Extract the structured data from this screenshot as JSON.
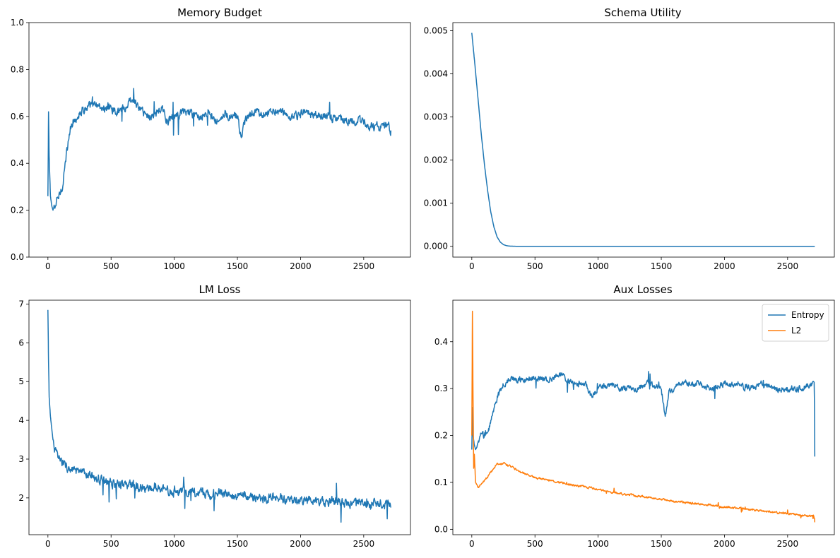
{
  "chart_data": [
    {
      "type": "line",
      "title": "Memory Budget",
      "xlabel": "",
      "ylabel": "",
      "xlim": [
        -150,
        2870
      ],
      "ylim": [
        0,
        1
      ],
      "xticks": [
        0,
        500,
        1000,
        1500,
        2000,
        2500
      ],
      "xtick_labels": [
        "0",
        "500",
        "1000",
        "1500",
        "2000",
        "2500"
      ],
      "yticks": [
        0,
        0.2,
        0.4,
        0.6,
        0.8,
        1.0
      ],
      "ytick_labels": [
        "0.0",
        "0.2",
        "0.4",
        "0.6",
        "0.8",
        "1.0"
      ],
      "grid": false,
      "series": [
        {
          "color": "#1f77b4",
          "noise": 0.035,
          "x": [
            0,
            5,
            10,
            20,
            30,
            40,
            60,
            80,
            100,
            120,
            150,
            180,
            200,
            230,
            260,
            300,
            350,
            400,
            450,
            500,
            550,
            600,
            650,
            700,
            750,
            800,
            850,
            900,
            950,
            1000,
            1050,
            1100,
            1150,
            1200,
            1250,
            1300,
            1350,
            1400,
            1450,
            1500,
            1530,
            1560,
            1600,
            1650,
            1700,
            1750,
            1800,
            1850,
            1900,
            1950,
            2000,
            2050,
            2100,
            2150,
            2200,
            2250,
            2300,
            2350,
            2400,
            2450,
            2500,
            2550,
            2600,
            2650,
            2700,
            2715
          ],
          "y": [
            0.26,
            0.62,
            0.43,
            0.26,
            0.22,
            0.2,
            0.22,
            0.25,
            0.28,
            0.32,
            0.45,
            0.55,
            0.58,
            0.6,
            0.62,
            0.64,
            0.64,
            0.65,
            0.63,
            0.64,
            0.62,
            0.63,
            0.66,
            0.65,
            0.62,
            0.6,
            0.61,
            0.63,
            0.58,
            0.6,
            0.61,
            0.62,
            0.6,
            0.6,
            0.62,
            0.6,
            0.58,
            0.62,
            0.6,
            0.6,
            0.5,
            0.57,
            0.61,
            0.62,
            0.61,
            0.62,
            0.63,
            0.62,
            0.58,
            0.6,
            0.61,
            0.62,
            0.6,
            0.61,
            0.6,
            0.59,
            0.6,
            0.58,
            0.59,
            0.58,
            0.57,
            0.56,
            0.55,
            0.55,
            0.56,
            0.54
          ]
        }
      ]
    },
    {
      "type": "line",
      "title": "Schema Utility",
      "xlabel": "",
      "ylabel": "",
      "xlim": [
        -150,
        2870
      ],
      "ylim": [
        -0.00025,
        0.00519
      ],
      "xticks": [
        0,
        500,
        1000,
        1500,
        2000,
        2500
      ],
      "xtick_labels": [
        "0",
        "500",
        "1000",
        "1500",
        "2000",
        "2500"
      ],
      "yticks": [
        0,
        0.001,
        0.002,
        0.003,
        0.004,
        0.005
      ],
      "ytick_labels": [
        "0.000",
        "0.001",
        "0.002",
        "0.003",
        "0.004",
        "0.005"
      ],
      "grid": false,
      "series": [
        {
          "color": "#1f77b4",
          "noise": 0,
          "x": [
            0,
            25,
            50,
            75,
            100,
            125,
            150,
            175,
            200,
            225,
            250,
            275,
            300,
            350,
            400,
            500,
            750,
            1000,
            1500,
            2000,
            2500,
            2715
          ],
          "y": [
            0.00495,
            0.0042,
            0.0034,
            0.0026,
            0.0019,
            0.0013,
            0.0008,
            0.00045,
            0.00022,
            0.0001,
            4e-05,
            1.5e-05,
            5e-06,
            1e-06,
            0,
            0,
            0,
            0,
            0,
            0,
            0,
            0
          ]
        }
      ]
    },
    {
      "type": "line",
      "title": "LM Loss",
      "xlabel": "",
      "ylabel": "",
      "xlim": [
        -150,
        2870
      ],
      "ylim": [
        1.05,
        7.1
      ],
      "xticks": [
        0,
        500,
        1000,
        1500,
        2000,
        2500
      ],
      "xtick_labels": [
        "0",
        "500",
        "1000",
        "1500",
        "2000",
        "2500"
      ],
      "yticks": [
        2,
        3,
        4,
        5,
        6,
        7
      ],
      "ytick_labels": [
        "2",
        "3",
        "4",
        "5",
        "6",
        "7"
      ],
      "grid": false,
      "series": [
        {
          "color": "#1f77b4",
          "noise": 0.22,
          "x": [
            0,
            5,
            10,
            20,
            30,
            40,
            60,
            80,
            100,
            150,
            200,
            250,
            300,
            400,
            500,
            600,
            700,
            800,
            900,
            1000,
            1100,
            1200,
            1300,
            1400,
            1500,
            1600,
            1700,
            1800,
            1900,
            2000,
            2100,
            2200,
            2300,
            2400,
            2500,
            2600,
            2700,
            2715
          ],
          "y": [
            6.85,
            5.5,
            4.6,
            4.1,
            3.8,
            3.5,
            3.2,
            3.05,
            2.95,
            2.8,
            2.7,
            2.65,
            2.6,
            2.5,
            2.4,
            2.35,
            2.3,
            2.25,
            2.2,
            2.18,
            2.15,
            2.12,
            2.1,
            2.08,
            2.05,
            2.03,
            2.0,
            1.98,
            1.96,
            1.95,
            1.93,
            1.92,
            1.9,
            1.88,
            1.85,
            1.85,
            1.82,
            1.75
          ]
        }
      ]
    },
    {
      "type": "line",
      "title": "Aux Losses",
      "xlabel": "",
      "ylabel": "",
      "xlim": [
        -150,
        2870
      ],
      "ylim": [
        -0.0115,
        0.4885
      ],
      "xticks": [
        0,
        500,
        1000,
        1500,
        2000,
        2500
      ],
      "xtick_labels": [
        "0",
        "500",
        "1000",
        "1500",
        "2000",
        "2500"
      ],
      "yticks": [
        0,
        0.1,
        0.2,
        0.3,
        0.4
      ],
      "ytick_labels": [
        "0.0",
        "0.1",
        "0.2",
        "0.3",
        "0.4"
      ],
      "grid": false,
      "legend": "top-right",
      "series": [
        {
          "name": "Entropy",
          "color": "#1f77b4",
          "noise": 0.012,
          "x": [
            0,
            5,
            10,
            20,
            30,
            50,
            70,
            100,
            130,
            160,
            200,
            250,
            300,
            400,
            500,
            600,
            700,
            800,
            900,
            950,
            1000,
            1100,
            1200,
            1300,
            1400,
            1500,
            1530,
            1560,
            1600,
            1700,
            1800,
            1900,
            2000,
            2100,
            2200,
            2300,
            2400,
            2500,
            2600,
            2700,
            2712,
            2715
          ],
          "y": [
            0.17,
            0.26,
            0.2,
            0.18,
            0.17,
            0.18,
            0.2,
            0.2,
            0.21,
            0.24,
            0.28,
            0.31,
            0.32,
            0.32,
            0.32,
            0.32,
            0.33,
            0.31,
            0.31,
            0.28,
            0.3,
            0.31,
            0.3,
            0.3,
            0.31,
            0.3,
            0.24,
            0.29,
            0.3,
            0.31,
            0.31,
            0.3,
            0.31,
            0.31,
            0.3,
            0.31,
            0.3,
            0.3,
            0.3,
            0.31,
            0.31,
            0.155
          ]
        },
        {
          "name": "L2",
          "color": "#ff7f0e",
          "noise": 0.004,
          "x": [
            0,
            5,
            10,
            15,
            20,
            30,
            50,
            80,
            120,
            160,
            200,
            250,
            300,
            400,
            500,
            600,
            700,
            800,
            900,
            1000,
            1100,
            1200,
            1300,
            1400,
            1500,
            1600,
            1700,
            1800,
            1900,
            2000,
            2100,
            2200,
            2300,
            2400,
            2500,
            2600,
            2700,
            2712,
            2715
          ],
          "y": [
            0.2,
            0.465,
            0.28,
            0.13,
            0.16,
            0.1,
            0.09,
            0.1,
            0.11,
            0.125,
            0.14,
            0.14,
            0.135,
            0.12,
            0.11,
            0.105,
            0.1,
            0.095,
            0.09,
            0.085,
            0.08,
            0.075,
            0.072,
            0.068,
            0.064,
            0.06,
            0.057,
            0.054,
            0.051,
            0.048,
            0.045,
            0.042,
            0.039,
            0.036,
            0.034,
            0.031,
            0.028,
            0.027,
            0.015
          ]
        }
      ]
    }
  ]
}
